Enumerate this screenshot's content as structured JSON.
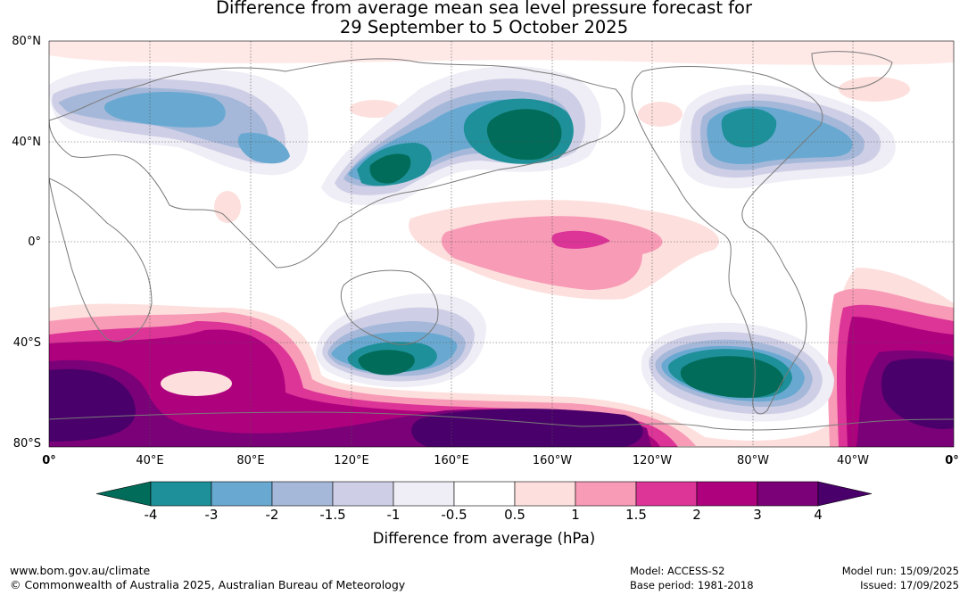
{
  "title": {
    "line1": "Difference from average mean sea level pressure forecast for",
    "line2": "29 September to 5 October 2025"
  },
  "lat_labels": [
    "80°N",
    "40°N",
    "0°",
    "40°S",
    "80°S"
  ],
  "lon_labels": [
    "0°",
    "40°E",
    "80°E",
    "120°E",
    "160°E",
    "160°W",
    "120°W",
    "80°W",
    "40°W",
    "0°"
  ],
  "colorbar": {
    "ticks": [
      "-4",
      "-3",
      "-2",
      "-1.5",
      "-1",
      "-0.5",
      "0.5",
      "1",
      "1.5",
      "2",
      "3",
      "4"
    ],
    "colors": [
      "#1e9099",
      "#69a9d1",
      "#a6b8d9",
      "#cecfe6",
      "#efedf5",
      "#ffffff",
      "#fde0dd",
      "#f89bb7",
      "#dd3497",
      "#ae017e",
      "#7a0177"
    ],
    "under_color": "#016c59",
    "over_color": "#49006a",
    "label": "Difference from average (hPa)"
  },
  "footer": {
    "website": "www.bom.gov.au/climate",
    "copyright": "© Commonwealth of Australia 2025, Australian Bureau of Meteorology",
    "model": "Model: ACCESS-S2",
    "base_period": "Base period: 1981-2018",
    "model_run": "Model run: 15/09/2025",
    "issued": "Issued: 17/09/2025"
  }
}
